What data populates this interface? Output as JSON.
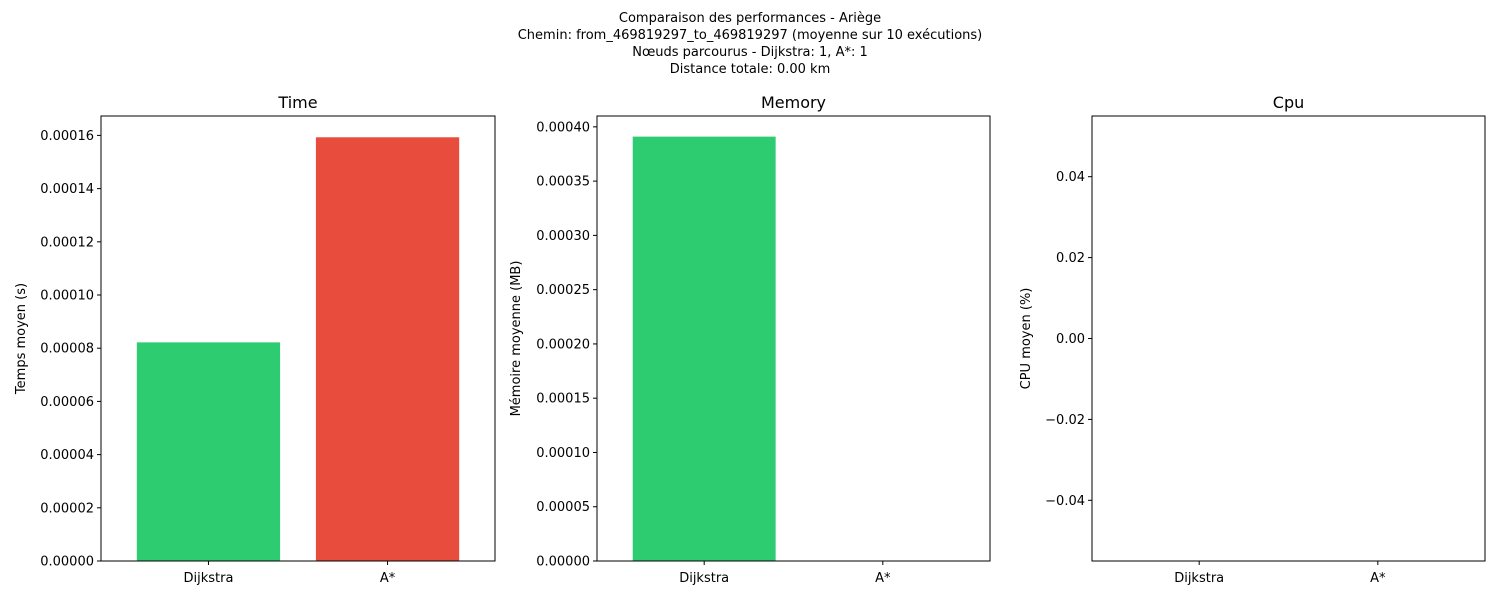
{
  "figure": {
    "suptitle_lines": [
      "Comparaison des performances - Ariège",
      "Chemin: from_469819297_to_469819297 (moyenne sur 10 exécutions)",
      "Nœuds parcourus - Dijkstra: 1, A*: 1",
      "Distance totale: 0.00 km"
    ]
  },
  "colors": {
    "dijkstra": "#2ecc71",
    "astar": "#e74c3c",
    "axes": "#000000"
  },
  "chart_data": [
    {
      "type": "bar",
      "title": "Time",
      "ylabel": "Temps moyen (s)",
      "categories": [
        "Dijkstra",
        "A*"
      ],
      "values": [
        8.22e-05,
        0.0001593
      ],
      "ylim": [
        0,
        0.0001673
      ],
      "yticks": [
        0,
        2e-05,
        4e-05,
        6e-05,
        8e-05,
        0.0001,
        0.00012,
        0.00014,
        0.00016
      ],
      "ytick_labels": [
        "0.00000",
        "0.00002",
        "0.00004",
        "0.00006",
        "0.00008",
        "0.00010",
        "0.00012",
        "0.00014",
        "0.00016"
      ],
      "grid": false
    },
    {
      "type": "bar",
      "title": "Memory",
      "ylabel": "Mémoire moyenne (MB)",
      "categories": [
        "Dijkstra",
        "A*"
      ],
      "values": [
        0.000391,
        0
      ],
      "ylim": [
        0,
        0.00041
      ],
      "yticks": [
        0,
        5e-05,
        0.0001,
        0.00015,
        0.0002,
        0.00025,
        0.0003,
        0.00035,
        0.0004
      ],
      "ytick_labels": [
        "0.00000",
        "0.00005",
        "0.00010",
        "0.00015",
        "0.00020",
        "0.00025",
        "0.00030",
        "0.00035",
        "0.00040"
      ],
      "grid": false
    },
    {
      "type": "bar",
      "title": "Cpu",
      "ylabel": "CPU moyen (%)",
      "categories": [
        "Dijkstra",
        "A*"
      ],
      "values": [
        0,
        0
      ],
      "ylim": [
        -0.055,
        0.055
      ],
      "yticks": [
        -0.04,
        -0.02,
        0,
        0.02,
        0.04
      ],
      "ytick_labels": [
        "−0.04",
        "−0.02",
        "0.00",
        "0.02",
        "0.04"
      ],
      "grid": false
    }
  ]
}
